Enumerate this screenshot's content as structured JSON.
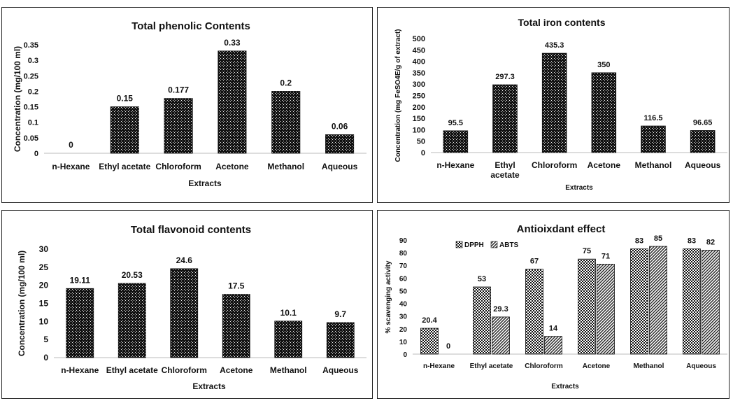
{
  "chart_data": [
    {
      "type": "bar",
      "title": "Total phenolic Contents",
      "xlabel": "Extracts",
      "ylabel": "Concentration  (mg/100 ml)",
      "categories": [
        "n-Hexane",
        "Ethyl acetate",
        "Chloroform",
        "Acetone",
        "Methanol",
        "Aqueous"
      ],
      "values": [
        0,
        0.15,
        0.177,
        0.33,
        0.2,
        0.06
      ],
      "value_labels": [
        "0",
        "0.15",
        "0.177",
        "0.33",
        "0.2",
        "0.06"
      ],
      "yticks": [
        "0",
        "0.05",
        "0.1",
        "0.15",
        "0.2",
        "0.25",
        "0.3",
        "0.35"
      ],
      "ylim": [
        0,
        0.35
      ],
      "grid": false,
      "pattern": "dense-dots"
    },
    {
      "type": "bar",
      "title": "Total iron contents",
      "xlabel": "Extracts",
      "ylabel": "Concentration (mg FeSO4E/g of extract)",
      "categories": [
        "n-Hexane",
        "Ethyl acetate",
        "Chloroform",
        "Acetone",
        "Methanol",
        "Aqueous"
      ],
      "category_lines": [
        [
          "n-Hexane"
        ],
        [
          "Ethyl",
          "acetate"
        ],
        [
          "Chloroform"
        ],
        [
          "Acetone"
        ],
        [
          "Methanol"
        ],
        [
          "Aqueous"
        ]
      ],
      "values": [
        95.5,
        297.3,
        435.3,
        350,
        116.5,
        96.65
      ],
      "value_labels": [
        "95.5",
        "297.3",
        "435.3",
        "350",
        "116.5",
        "96.65"
      ],
      "yticks": [
        "0",
        "50",
        "100",
        "150",
        "200",
        "250",
        "300",
        "350",
        "400",
        "450",
        "500"
      ],
      "ylim": [
        0,
        500
      ],
      "grid": false,
      "pattern": "dense-dots"
    },
    {
      "type": "bar",
      "title": "Total flavonoid contents",
      "xlabel": "Extracts",
      "ylabel": "Concentration (mg/100 ml)",
      "categories": [
        "n-Hexane",
        "Ethyl acetate",
        "Chloroform",
        "Acetone",
        "Methanol",
        "Aqueous"
      ],
      "values": [
        19.11,
        20.53,
        24.6,
        17.5,
        10.1,
        9.7
      ],
      "value_labels": [
        "19.11",
        "20.53",
        "24.6",
        "17.5",
        "10.1",
        "9.7"
      ],
      "yticks": [
        "0",
        "5",
        "10",
        "15",
        "20",
        "25",
        "30"
      ],
      "ylim": [
        0,
        30
      ],
      "grid": false,
      "pattern": "dense-dots"
    },
    {
      "type": "bar",
      "title": "Antioixdant effect",
      "xlabel": "Extracts",
      "ylabel": "% scavenging activity",
      "categories": [
        "n-Hexane",
        "Ethyl acetate",
        "Chloroform",
        "Acetone",
        "Methanol",
        "Aqueous"
      ],
      "series": [
        {
          "name": "DPPH",
          "values": [
            20.4,
            53,
            67,
            75,
            83,
            83
          ],
          "value_labels": [
            "20.4",
            "53",
            "67",
            "75",
            "83",
            "83"
          ],
          "pattern": "checker"
        },
        {
          "name": "ABTS",
          "values": [
            0,
            29.3,
            14,
            71,
            85,
            82
          ],
          "value_labels": [
            "0",
            "29.3",
            "14",
            "71",
            "85",
            "82"
          ],
          "pattern": "diagonal"
        }
      ],
      "yticks": [
        "0",
        "10",
        "20",
        "30",
        "40",
        "50",
        "60",
        "70",
        "80",
        "90"
      ],
      "ylim": [
        0,
        90
      ],
      "legend_position": "top-left",
      "grid": false
    }
  ]
}
